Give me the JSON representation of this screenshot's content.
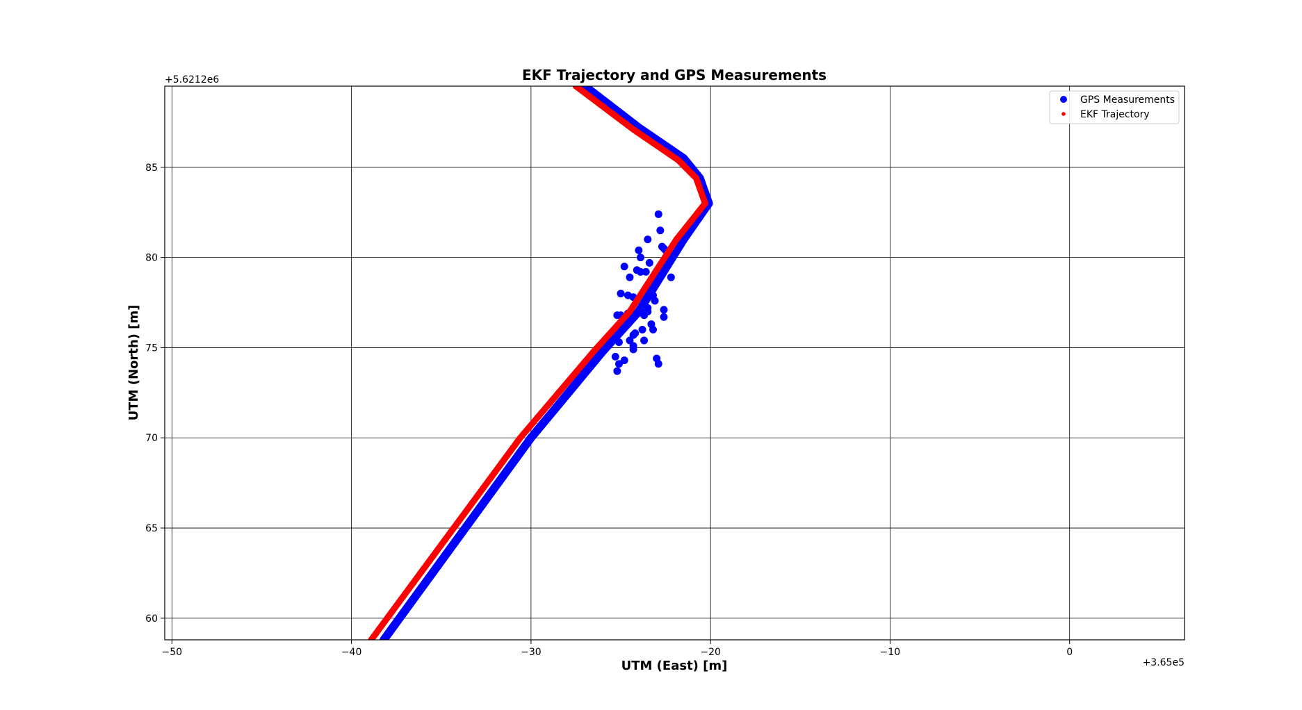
{
  "chart_data": {
    "type": "scatter",
    "title": "EKF Trajectory and GPS Measurements",
    "xlabel": "UTM (East) [m]",
    "ylabel": "UTM (North) [m]",
    "x_offset_label": "+3.65e5",
    "y_offset_label": "+5.6212e6",
    "xlim": [
      -50.4,
      6.4
    ],
    "ylim": [
      58.8,
      89.5
    ],
    "xticks": [
      -50,
      -40,
      -30,
      -20,
      -10,
      0
    ],
    "xtick_labels": [
      "−50",
      "−40",
      "−30",
      "−20",
      "−10",
      "0"
    ],
    "yticks": [
      60,
      65,
      70,
      75,
      80,
      85
    ],
    "ytick_labels": [
      "60",
      "65",
      "70",
      "75",
      "80",
      "85"
    ],
    "grid": true,
    "legend_position": "top-right",
    "series": [
      {
        "name": "GPS Measurements",
        "color": "#0000ff",
        "marker": "circle",
        "track": [
          [
            -38.2,
            58.8
          ],
          [
            -30.0,
            70.0
          ],
          [
            -26.0,
            74.8
          ],
          [
            -24.0,
            77.0
          ],
          [
            -21.5,
            81.0
          ],
          [
            -20.1,
            83.0
          ],
          [
            -20.6,
            84.4
          ],
          [
            -21.5,
            85.5
          ],
          [
            -24.0,
            87.2
          ],
          [
            -27.0,
            89.5
          ]
        ],
        "cluster": [
          [
            -22.9,
            82.4
          ],
          [
            -22.8,
            81.5
          ],
          [
            -23.5,
            81.0
          ],
          [
            -22.7,
            80.6
          ],
          [
            -22.5,
            80.4
          ],
          [
            -22.6,
            80.5
          ],
          [
            -24.0,
            80.4
          ],
          [
            -23.9,
            80.0
          ],
          [
            -22.4,
            79.6
          ],
          [
            -24.8,
            79.5
          ],
          [
            -23.4,
            79.7
          ],
          [
            -24.1,
            79.3
          ],
          [
            -23.6,
            79.2
          ],
          [
            -23.9,
            79.2
          ],
          [
            -24.5,
            78.9
          ],
          [
            -22.2,
            78.9
          ],
          [
            -25.0,
            78.0
          ],
          [
            -24.6,
            77.9
          ],
          [
            -24.3,
            77.8
          ],
          [
            -23.2,
            77.9
          ],
          [
            -23.1,
            77.6
          ],
          [
            -23.5,
            77.2
          ],
          [
            -22.6,
            77.1
          ],
          [
            -23.5,
            77.0
          ],
          [
            -25.2,
            76.8
          ],
          [
            -25.0,
            76.8
          ],
          [
            -24.6,
            76.9
          ],
          [
            -23.7,
            76.8
          ],
          [
            -22.6,
            76.7
          ],
          [
            -23.3,
            76.3
          ],
          [
            -24.9,
            76.0
          ],
          [
            -23.8,
            76.0
          ],
          [
            -23.2,
            76.0
          ],
          [
            -24.2,
            75.8
          ],
          [
            -24.3,
            75.7
          ],
          [
            -23.7,
            75.4
          ],
          [
            -24.5,
            75.4
          ],
          [
            -25.1,
            75.3
          ],
          [
            -24.3,
            75.1
          ],
          [
            -24.3,
            74.9
          ],
          [
            -25.3,
            74.5
          ],
          [
            -23.0,
            74.4
          ],
          [
            -24.8,
            74.3
          ],
          [
            -25.1,
            74.1
          ],
          [
            -22.9,
            74.1
          ],
          [
            -25.2,
            73.7
          ]
        ]
      },
      {
        "name": "EKF Trajectory",
        "color": "#ff0000",
        "marker": "dot",
        "track": [
          [
            -38.9,
            58.8
          ],
          [
            -30.6,
            70.0
          ],
          [
            -26.5,
            74.8
          ],
          [
            -24.5,
            77.0
          ],
          [
            -21.9,
            81.0
          ],
          [
            -20.3,
            83.0
          ],
          [
            -20.8,
            84.4
          ],
          [
            -21.8,
            85.4
          ],
          [
            -24.3,
            87.1
          ],
          [
            -27.5,
            89.5
          ]
        ]
      }
    ]
  }
}
